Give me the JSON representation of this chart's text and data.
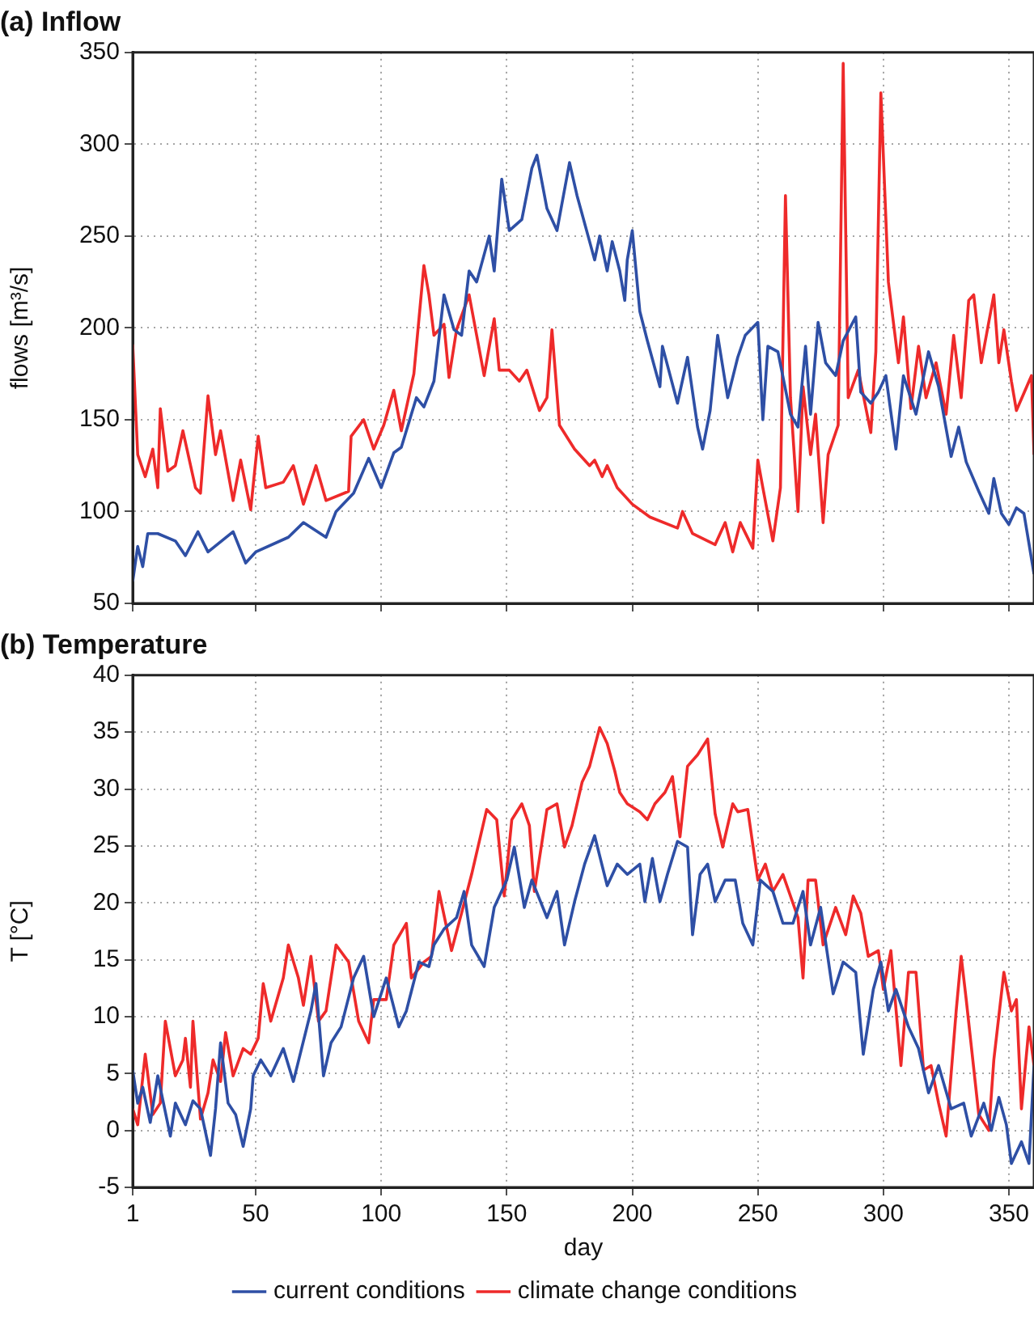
{
  "chart_data": [
    {
      "type": "line",
      "title": "(a) Inflow",
      "ylabel": "flows [m³/s]",
      "xlim": [
        1,
        360
      ],
      "xticks": [
        1,
        50,
        100,
        150,
        200,
        250,
        300,
        350
      ],
      "ylim": [
        50,
        350
      ],
      "yticks": [
        50,
        100,
        150,
        200,
        250,
        300,
        350
      ],
      "grid": true,
      "tick_labels": "y",
      "marker": "none",
      "line_style": "solid",
      "series": [
        {
          "color": "#2e4fa5",
          "x": [
            1,
            3,
            5,
            7,
            11,
            18,
            22,
            27,
            31,
            41,
            46,
            50,
            63,
            69,
            78,
            82,
            89,
            95,
            100,
            105,
            108,
            114,
            117,
            121,
            125,
            129,
            132,
            135,
            138,
            143,
            145,
            148,
            151,
            156,
            160,
            162,
            166,
            170,
            175,
            178,
            185,
            187,
            190,
            192,
            195,
            197,
            198,
            200,
            203,
            206,
            211,
            212,
            218,
            222,
            226,
            228,
            231,
            234,
            238,
            242,
            245,
            250,
            252,
            254,
            258,
            263,
            266,
            269,
            271,
            274,
            277,
            281,
            284,
            289,
            291,
            295,
            298,
            301,
            305,
            308,
            313,
            318,
            322,
            327,
            330,
            333,
            338,
            342,
            344,
            347,
            350,
            353,
            356,
            360
          ],
          "values": [
            62,
            81,
            70,
            88,
            88,
            84,
            76,
            89,
            78,
            89,
            72,
            78,
            86,
            94,
            86,
            100,
            110,
            129,
            113,
            132,
            135,
            162,
            157,
            171,
            218,
            199,
            196,
            231,
            225,
            250,
            231,
            281,
            253,
            259,
            287,
            294,
            265,
            253,
            290,
            272,
            237,
            250,
            231,
            247,
            231,
            215,
            237,
            253,
            209,
            193,
            168,
            190,
            159,
            184,
            146,
            134,
            155,
            196,
            162,
            184,
            196,
            203,
            150,
            190,
            187,
            153,
            146,
            190,
            153,
            203,
            181,
            174,
            193,
            206,
            165,
            159,
            165,
            174,
            134,
            174,
            153,
            187,
            168,
            130,
            146,
            127,
            111,
            99,
            118,
            99,
            93,
            102,
            99,
            66
          ]
        },
        {
          "color": "#ee2a2a",
          "x": [
            1,
            3,
            6,
            9,
            11,
            12,
            15,
            18,
            21,
            26,
            28,
            31,
            34,
            36,
            41,
            44,
            48,
            51,
            54,
            61,
            65,
            69,
            74,
            78,
            87,
            88,
            93,
            97,
            101,
            105,
            108,
            113,
            117,
            119,
            121,
            125,
            127,
            130,
            135,
            138,
            141,
            145,
            147,
            151,
            155,
            158,
            163,
            166,
            168,
            171,
            177,
            183,
            185,
            188,
            190,
            194,
            200,
            207,
            218,
            220,
            224,
            233,
            237,
            240,
            243,
            248,
            250,
            252,
            256,
            259,
            261,
            263,
            266,
            268,
            271,
            273,
            276,
            278,
            282,
            284,
            286,
            290,
            295,
            297,
            299,
            302,
            306,
            308,
            311,
            314,
            317,
            321,
            325,
            328,
            331,
            334,
            336,
            339,
            344,
            346,
            348,
            351,
            353,
            359,
            360
          ],
          "values": [
            191,
            131,
            119,
            134,
            113,
            156,
            122,
            125,
            144,
            113,
            110,
            163,
            131,
            144,
            106,
            128,
            101,
            141,
            113,
            116,
            125,
            104,
            125,
            106,
            111,
            141,
            150,
            134,
            147,
            166,
            144,
            175,
            234,
            218,
            196,
            202,
            173,
            199,
            218,
            196,
            174,
            205,
            177,
            177,
            171,
            177,
            155,
            162,
            199,
            147,
            134,
            125,
            128,
            119,
            125,
            113,
            104,
            97,
            91,
            100,
            88,
            82,
            94,
            78,
            94,
            80,
            128,
            113,
            84,
            113,
            272,
            162,
            100,
            168,
            131,
            153,
            94,
            131,
            147,
            344,
            162,
            177,
            143,
            187,
            328,
            225,
            181,
            206,
            156,
            190,
            162,
            181,
            153,
            196,
            162,
            215,
            218,
            181,
            218,
            181,
            199,
            171,
            155,
            174,
            131
          ]
        }
      ]
    },
    {
      "type": "line",
      "title": "(b) Temperature",
      "xlabel": "day",
      "ylabel": "T [°C]",
      "xlim": [
        1,
        360
      ],
      "xticks": [
        1,
        50,
        100,
        150,
        200,
        250,
        300,
        350
      ],
      "ylim": [
        -5,
        40
      ],
      "yticks": [
        -5,
        0,
        5,
        10,
        15,
        20,
        25,
        30,
        35,
        40
      ],
      "grid": true,
      "legend": "bottom",
      "marker": "none",
      "line_style": "solid",
      "series": [
        {
          "name": "current conditions",
          "color": "#2e4fa5",
          "x": [
            1,
            3,
            5,
            8,
            11,
            16,
            18,
            22,
            25,
            28,
            32,
            34,
            36,
            39,
            42,
            45,
            48,
            49,
            52,
            56,
            61,
            65,
            72,
            74,
            77,
            80,
            84,
            89,
            93,
            97,
            102,
            107,
            110,
            115,
            119,
            121,
            125,
            130,
            133,
            136,
            141,
            145,
            150,
            153,
            157,
            160,
            166,
            170,
            173,
            177,
            181,
            185,
            190,
            194,
            198,
            203,
            205,
            208,
            211,
            214,
            218,
            222,
            224,
            227,
            230,
            233,
            237,
            241,
            244,
            248,
            251,
            256,
            260,
            264,
            268,
            271,
            275,
            280,
            284,
            289,
            292,
            296,
            299,
            302,
            305,
            310,
            314,
            318,
            322,
            327,
            332,
            335,
            340,
            343,
            346,
            349,
            351,
            355,
            358,
            360
          ],
          "values": [
            5.3,
            2.4,
            3.8,
            0.7,
            4.8,
            -0.5,
            2.4,
            0.5,
            2.6,
            1.9,
            -2.2,
            1.9,
            7.7,
            2.4,
            1.4,
            -1.4,
            1.9,
            4.8,
            6.2,
            4.8,
            7.2,
            4.3,
            10.5,
            12.9,
            4.8,
            7.7,
            9.1,
            13.4,
            15.3,
            10,
            13.4,
            9.1,
            10.5,
            14.8,
            14.4,
            16.3,
            17.7,
            18.7,
            21,
            16.3,
            14.4,
            19.6,
            22,
            24.9,
            19.6,
            22,
            18.7,
            21,
            16.3,
            20.1,
            23.4,
            25.9,
            21.5,
            23.4,
            22.5,
            23.4,
            20.1,
            23.9,
            20.1,
            22.5,
            25.4,
            24.9,
            17.2,
            22.5,
            23.4,
            20.1,
            22,
            22,
            18.2,
            16.3,
            22,
            21,
            18.2,
            18.2,
            21,
            16.3,
            19.6,
            12,
            14.8,
            13.9,
            6.7,
            12.4,
            14.8,
            10.5,
            12.4,
            9.1,
            7.2,
            3.3,
            5.7,
            1.9,
            2.4,
            -0.5,
            2.4,
            0,
            2.9,
            0.5,
            -2.9,
            -1,
            -2.9,
            5.7
          ]
        },
        {
          "name": "climate change conditions",
          "color": "#ee2a2a",
          "x": [
            1,
            3,
            6,
            9,
            12,
            14,
            18,
            21,
            22,
            24,
            25,
            28,
            31,
            33,
            36,
            38,
            41,
            45,
            48,
            51,
            53,
            56,
            61,
            63,
            67,
            69,
            72,
            75,
            78,
            82,
            87,
            91,
            95,
            97,
            102,
            105,
            110,
            112,
            117,
            120,
            123,
            128,
            132,
            136,
            142,
            146,
            149,
            152,
            156,
            159,
            161,
            166,
            170,
            173,
            176,
            180,
            183,
            187,
            190,
            193,
            195,
            198,
            203,
            206,
            209,
            213,
            216,
            219,
            222,
            226,
            230,
            233,
            236,
            240,
            242,
            246,
            250,
            253,
            256,
            260,
            266,
            268,
            270,
            273,
            276,
            281,
            285,
            288,
            291,
            294,
            298,
            300,
            303,
            307,
            310,
            313,
            316,
            319,
            322,
            325,
            329,
            331,
            333,
            338,
            342,
            344,
            348,
            351,
            353,
            355,
            358,
            360
          ],
          "values": [
            1.9,
            0.5,
            6.7,
            1.4,
            2.4,
            9.6,
            4.8,
            6.2,
            8.1,
            3.8,
            9.6,
            1,
            3.3,
            6.2,
            4.3,
            8.6,
            4.8,
            7.2,
            6.7,
            8.1,
            12.9,
            9.6,
            13.4,
            16.3,
            13.4,
            11,
            15.3,
            9.6,
            10.5,
            16.3,
            14.8,
            9.6,
            7.7,
            11.5,
            11.5,
            16.3,
            18.2,
            13.4,
            14.8,
            15.3,
            21,
            15.8,
            19.1,
            22.5,
            28.2,
            27.3,
            20.6,
            27.3,
            28.7,
            26.8,
            21,
            28.2,
            28.7,
            24.9,
            26.8,
            30.6,
            32,
            35.4,
            34,
            31.6,
            29.7,
            28.7,
            28,
            27.3,
            28.7,
            29.7,
            31.1,
            25.8,
            32,
            33,
            34.4,
            27.8,
            24.9,
            28.7,
            28,
            28.2,
            22,
            23.4,
            21,
            22.5,
            18.7,
            13.4,
            22,
            22,
            16.3,
            19.6,
            17.2,
            20.6,
            19.1,
            15.3,
            15.8,
            12.4,
            15.8,
            5.7,
            13.9,
            13.9,
            5.3,
            5.7,
            2.4,
            -0.5,
            10.5,
            15.3,
            11.5,
            1.4,
            0,
            6.2,
            13.9,
            10.5,
            11.5,
            1.9,
            9.1,
            5.7
          ]
        }
      ]
    }
  ]
}
